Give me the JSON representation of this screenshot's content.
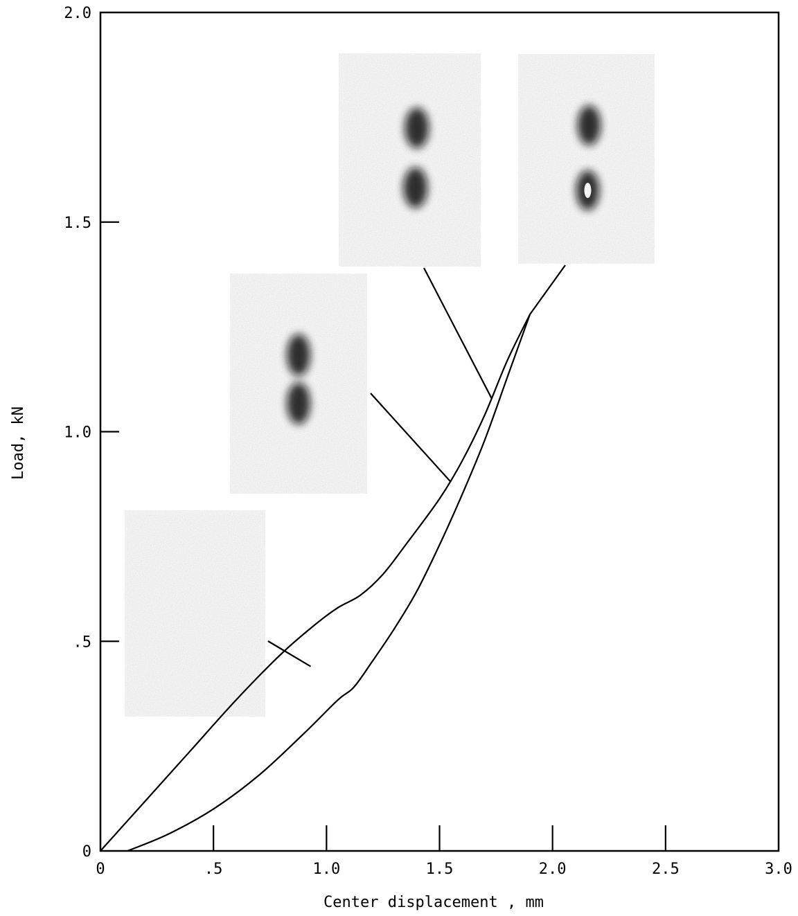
{
  "chart_data": {
    "type": "line",
    "title": "",
    "xlabel": "Center displacement , mm",
    "ylabel": "Load, kN",
    "xlim": [
      0,
      3.0
    ],
    "ylim": [
      0,
      2.0
    ],
    "grid": false,
    "legend": "none",
    "x_ticks": [
      {
        "value": 0,
        "label": "0"
      },
      {
        "value": 0.5,
        "label": ".5"
      },
      {
        "value": 1.0,
        "label": "1.0"
      },
      {
        "value": 1.5,
        "label": "1.5"
      },
      {
        "value": 2.0,
        "label": "2.0"
      },
      {
        "value": 2.5,
        "label": "2.5"
      },
      {
        "value": 3.0,
        "label": "3.0"
      }
    ],
    "y_ticks": [
      {
        "value": 0,
        "label": "0"
      },
      {
        "value": 0.5,
        "label": ".5"
      },
      {
        "value": 1.0,
        "label": "1.0"
      },
      {
        "value": 1.5,
        "label": "1.5"
      },
      {
        "value": 2.0,
        "label": "2.0"
      }
    ],
    "series": [
      {
        "x": [
          0.0,
          0.2,
          0.4,
          0.6,
          0.8,
          0.95,
          1.05,
          1.15,
          1.25,
          1.35,
          1.5,
          1.6,
          1.7,
          1.8,
          1.9
        ],
        "y": [
          0.0,
          0.12,
          0.24,
          0.36,
          0.47,
          0.54,
          0.58,
          0.61,
          0.66,
          0.73,
          0.84,
          0.93,
          1.04,
          1.17,
          1.28
        ]
      },
      {
        "x": [
          0.12,
          0.3,
          0.5,
          0.7,
          0.9,
          1.05,
          1.12,
          1.2,
          1.3,
          1.4,
          1.5,
          1.6,
          1.7,
          1.8,
          1.9
        ],
        "y": [
          0.0,
          0.04,
          0.1,
          0.18,
          0.28,
          0.36,
          0.39,
          0.45,
          0.53,
          0.62,
          0.73,
          0.85,
          0.98,
          1.13,
          1.28
        ]
      }
    ],
    "insets": [
      {
        "name": "inset-1",
        "points_to": {
          "x": 0.93,
          "y": 0.44
        },
        "spots": []
      },
      {
        "name": "inset-2",
        "points_to": {
          "x": 1.55,
          "y": 0.88
        },
        "spots": [
          {
            "dx": 0.5,
            "dy": 0.37
          },
          {
            "dx": 0.5,
            "dy": 0.59
          }
        ]
      },
      {
        "name": "inset-3",
        "points_to": {
          "x": 1.73,
          "y": 1.08
        },
        "spots": [
          {
            "dx": 0.55,
            "dy": 0.35
          },
          {
            "dx": 0.54,
            "dy": 0.63
          }
        ]
      },
      {
        "name": "inset-4",
        "points_to": {
          "x": 1.9,
          "y": 1.28
        },
        "spots": [
          {
            "dx": 0.52,
            "dy": 0.34
          },
          {
            "dx": 0.51,
            "dy": 0.65
          }
        ]
      }
    ]
  }
}
